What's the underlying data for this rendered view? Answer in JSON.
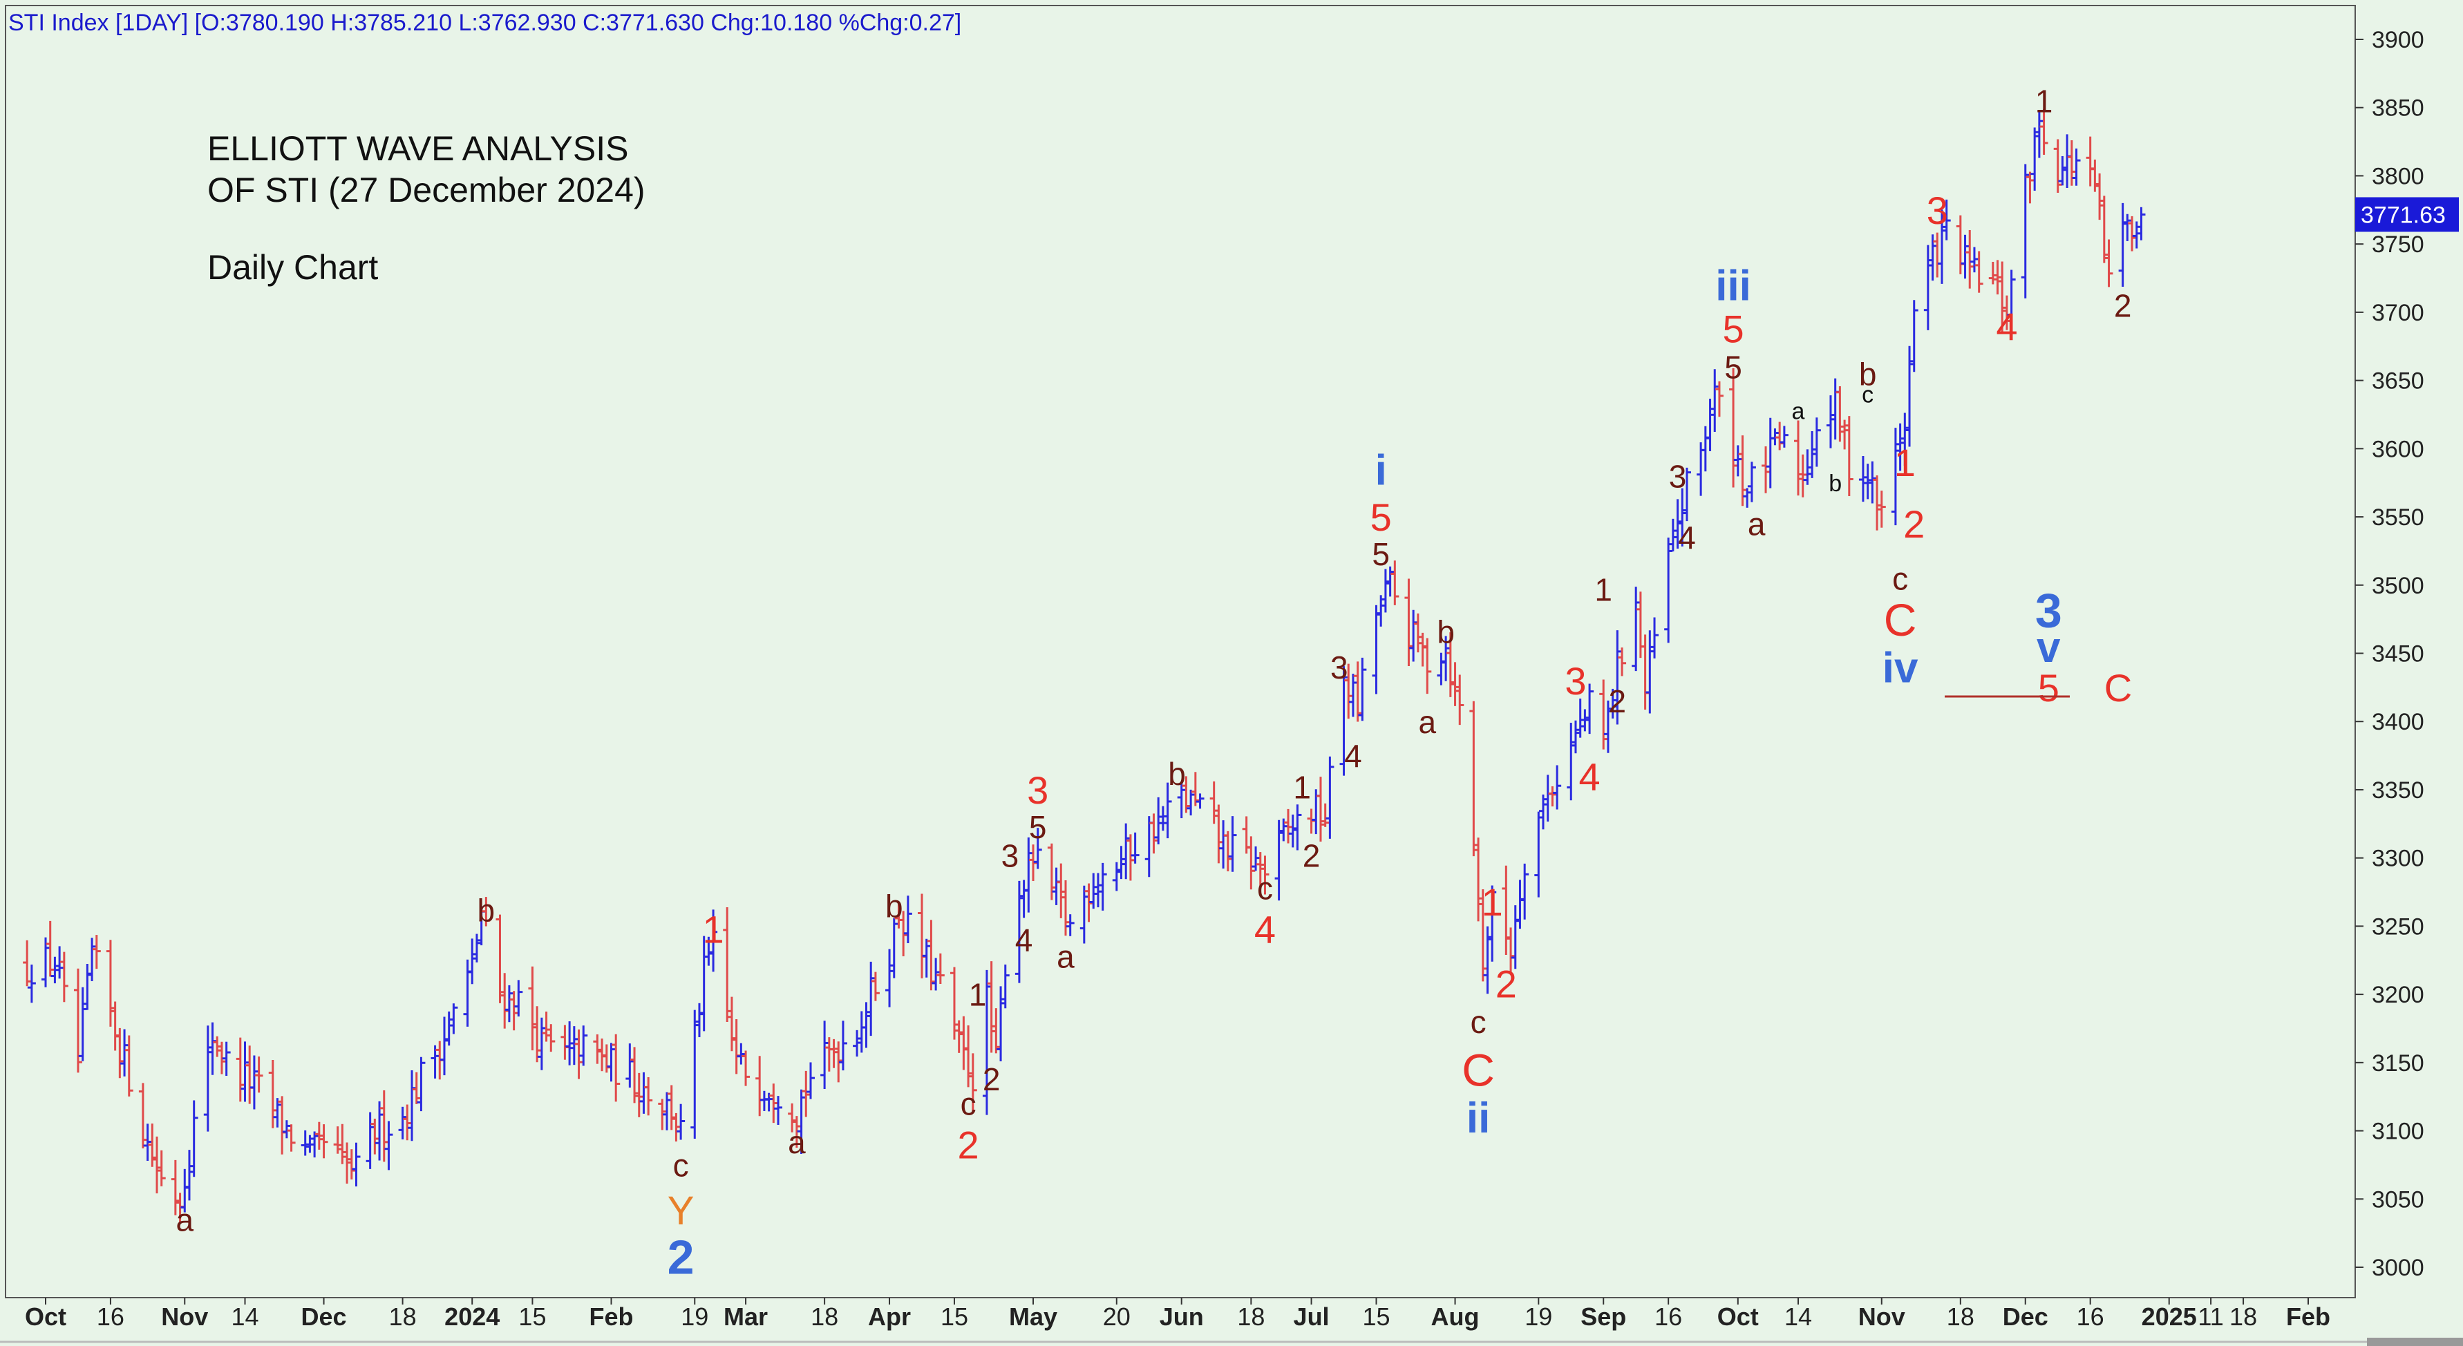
{
  "header": "STI Index [1DAY] [O:3780.190 H:3785.210 L:3762.930 C:3771.630 Chg:10.180 %Chg:0.27]",
  "title_lines": [
    "ELLIOTT WAVE ANALYSIS",
    "OF STI (27 December 2024)",
    "Daily Chart"
  ],
  "last_price": "3771.63",
  "colors": {
    "background": "#e8f4e8",
    "up_bar": "#2a2ae0",
    "down_bar": "#e04a4a",
    "label_dark": "#6b1a12",
    "label_red": "#e8322a",
    "label_blue": "#3a6ad8",
    "label_orange": "#e8802a",
    "price_box": "#1a1ad8"
  },
  "chart_data": {
    "type": "ohlc",
    "interval": "1DAY",
    "ylim": [
      2970,
      3920
    ],
    "y_ticks": [
      3000,
      3050,
      3100,
      3150,
      3200,
      3250,
      3300,
      3350,
      3400,
      3450,
      3500,
      3550,
      3600,
      3650,
      3700,
      3750,
      3800,
      3850,
      3900
    ],
    "x_ticks": [
      {
        "label": "Oct",
        "date": "2023-10-02",
        "major": true
      },
      {
        "label": "16",
        "date": "2023-10-16"
      },
      {
        "label": "Nov",
        "date": "2023-11-01",
        "major": true
      },
      {
        "label": "14",
        "date": "2023-11-14"
      },
      {
        "label": "Dec",
        "date": "2023-12-01",
        "major": true
      },
      {
        "label": "18",
        "date": "2023-12-18"
      },
      {
        "label": "2024",
        "date": "2024-01-02",
        "major": true
      },
      {
        "label": "15",
        "date": "2024-01-15"
      },
      {
        "label": "Feb",
        "date": "2024-02-01",
        "major": true
      },
      {
        "label": "19",
        "date": "2024-02-19"
      },
      {
        "label": "Mar",
        "date": "2024-03-01",
        "major": true
      },
      {
        "label": "18",
        "date": "2024-03-18"
      },
      {
        "label": "Apr",
        "date": "2024-04-01",
        "major": true
      },
      {
        "label": "15",
        "date": "2024-04-15"
      },
      {
        "label": "May",
        "date": "2024-05-02",
        "major": true
      },
      {
        "label": "20",
        "date": "2024-05-20"
      },
      {
        "label": "Jun",
        "date": "2024-06-03",
        "major": true
      },
      {
        "label": "18",
        "date": "2024-06-18"
      },
      {
        "label": "Jul",
        "date": "2024-07-01",
        "major": true
      },
      {
        "label": "15",
        "date": "2024-07-15"
      },
      {
        "label": "Aug",
        "date": "2024-08-01",
        "major": true
      },
      {
        "label": "19",
        "date": "2024-08-19"
      },
      {
        "label": "Sep",
        "date": "2024-09-02",
        "major": true
      },
      {
        "label": "16",
        "date": "2024-09-16"
      },
      {
        "label": "Oct",
        "date": "2024-10-01",
        "major": true
      },
      {
        "label": "14",
        "date": "2024-10-14"
      },
      {
        "label": "Nov",
        "date": "2024-11-01",
        "major": true
      },
      {
        "label": "18",
        "date": "2024-11-18"
      },
      {
        "label": "Dec",
        "date": "2024-12-02",
        "major": true
      },
      {
        "label": "16",
        "date": "2024-12-16"
      },
      {
        "label": "2025",
        "date": "2025-01-02",
        "major": true
      },
      {
        "label": "11",
        "date": "2025-01-11"
      },
      {
        "label": "18",
        "date": "2025-01-18"
      },
      {
        "label": "Feb",
        "date": "2025-02-01",
        "major": true
      }
    ],
    "price_path": [
      [
        "2023-09-28",
        3220
      ],
      [
        "2023-10-04",
        3225
      ],
      [
        "2023-10-09",
        3150
      ],
      [
        "2023-10-12",
        3230
      ],
      [
        "2023-10-16",
        3185
      ],
      [
        "2023-10-20",
        3140
      ],
      [
        "2023-10-24",
        3090
      ],
      [
        "2023-10-27",
        3065
      ],
      [
        "2023-10-31",
        3050
      ],
      [
        "2023-11-03",
        3105
      ],
      [
        "2023-11-07",
        3170
      ],
      [
        "2023-11-10",
        3150
      ],
      [
        "2023-11-14",
        3140
      ],
      [
        "2023-11-17",
        3130
      ],
      [
        "2023-11-22",
        3105
      ],
      [
        "2023-11-28",
        3080
      ],
      [
        "2023-12-01",
        3090
      ],
      [
        "2023-12-05",
        3075
      ],
      [
        "2023-12-08",
        3070
      ],
      [
        "2023-12-12",
        3100
      ],
      [
        "2023-12-18",
        3110
      ],
      [
        "2023-12-22",
        3140
      ],
      [
        "2023-12-27",
        3170
      ],
      [
        "2024-01-02",
        3220
      ],
      [
        "2024-01-04",
        3260
      ],
      [
        "2024-01-08",
        3200
      ],
      [
        "2024-01-12",
        3195
      ],
      [
        "2024-01-17",
        3165
      ],
      [
        "2024-01-22",
        3155
      ],
      [
        "2024-01-26",
        3160
      ],
      [
        "2024-01-31",
        3150
      ],
      [
        "2024-02-05",
        3140
      ],
      [
        "2024-02-09",
        3130
      ],
      [
        "2024-02-14",
        3115
      ],
      [
        "2024-02-16",
        3100
      ],
      [
        "2024-02-21",
        3215
      ],
      [
        "2024-02-23",
        3235
      ],
      [
        "2024-02-28",
        3150
      ],
      [
        "2024-03-04",
        3135
      ],
      [
        "2024-03-08",
        3130
      ],
      [
        "2024-03-12",
        3115
      ],
      [
        "2024-03-15",
        3140
      ],
      [
        "2024-03-20",
        3160
      ],
      [
        "2024-03-25",
        3175
      ],
      [
        "2024-03-28",
        3200
      ],
      [
        "2024-04-01",
        3230
      ],
      [
        "2024-04-03",
        3260
      ],
      [
        "2024-04-08",
        3230
      ],
      [
        "2024-04-12",
        3205
      ],
      [
        "2024-04-16",
        3160
      ],
      [
        "2024-04-19",
        3140
      ],
      [
        "2024-04-22",
        3195
      ],
      [
        "2024-04-24",
        3150
      ],
      [
        "2024-04-26",
        3225
      ],
      [
        "2024-04-29",
        3275
      ],
      [
        "2024-05-02",
        3300
      ],
      [
        "2024-05-07",
        3270
      ],
      [
        "2024-05-10",
        3250
      ],
      [
        "2024-05-15",
        3285
      ],
      [
        "2024-05-20",
        3295
      ],
      [
        "2024-05-24",
        3310
      ],
      [
        "2024-05-29",
        3325
      ],
      [
        "2024-06-03",
        3345
      ],
      [
        "2024-06-07",
        3335
      ],
      [
        "2024-06-12",
        3310
      ],
      [
        "2024-06-17",
        3300
      ],
      [
        "2024-06-21",
        3290
      ],
      [
        "2024-06-26",
        3320
      ],
      [
        "2024-07-01",
        3335
      ],
      [
        "2024-07-04",
        3330
      ],
      [
        "2024-07-08",
        3435
      ],
      [
        "2024-07-11",
        3410
      ],
      [
        "2024-07-15",
        3480
      ],
      [
        "2024-07-18",
        3500
      ],
      [
        "2024-07-22",
        3465
      ],
      [
        "2024-07-26",
        3445
      ],
      [
        "2024-07-30",
        3455
      ],
      [
        "2024-08-01",
        3420
      ],
      [
        "2024-08-03",
        3400
      ],
      [
        "2024-08-05",
        3310
      ],
      [
        "2024-08-07",
        3225
      ],
      [
        "2024-08-09",
        3265
      ],
      [
        "2024-08-13",
        3235
      ],
      [
        "2024-08-16",
        3300
      ],
      [
        "2024-08-20",
        3340
      ],
      [
        "2024-08-23",
        3360
      ],
      [
        "2024-08-27",
        3390
      ],
      [
        "2024-08-30",
        3410
      ],
      [
        "2024-09-02",
        3385
      ],
      [
        "2024-09-05",
        3440
      ],
      [
        "2024-09-09",
        3490
      ],
      [
        "2024-09-11",
        3420
      ],
      [
        "2024-09-16",
        3520
      ],
      [
        "2024-09-19",
        3560
      ],
      [
        "2024-09-23",
        3600
      ],
      [
        "2024-09-26",
        3640
      ],
      [
        "2024-09-30",
        3600
      ],
      [
        "2024-10-03",
        3570
      ],
      [
        "2024-10-07",
        3590
      ],
      [
        "2024-10-10",
        3605
      ],
      [
        "2024-10-15",
        3580
      ],
      [
        "2024-10-18",
        3620
      ],
      [
        "2024-10-22",
        3630
      ],
      [
        "2024-10-25",
        3590
      ],
      [
        "2024-10-29",
        3580
      ],
      [
        "2024-11-01",
        3550
      ],
      [
        "2024-11-04",
        3600
      ],
      [
        "2024-11-06",
        3620
      ],
      [
        "2024-11-08",
        3700
      ],
      [
        "2024-11-12",
        3740
      ],
      [
        "2024-11-15",
        3760
      ],
      [
        "2024-11-20",
        3730
      ],
      [
        "2024-11-25",
        3720
      ],
      [
        "2024-11-28",
        3700
      ],
      [
        "2024-12-02",
        3790
      ],
      [
        "2024-12-05",
        3840
      ],
      [
        "2024-12-09",
        3805
      ],
      [
        "2024-12-13",
        3810
      ],
      [
        "2024-12-17",
        3790
      ],
      [
        "2024-12-20",
        3720
      ],
      [
        "2024-12-23",
        3760
      ],
      [
        "2024-12-27",
        3771.63
      ]
    ],
    "annotations": [
      {
        "text": "a",
        "date": "2023-11-01",
        "price": 3035,
        "style": "dark"
      },
      {
        "text": "b",
        "date": "2024-01-05",
        "price": 3262,
        "style": "dark"
      },
      {
        "text": "c",
        "date": "2024-02-16",
        "price": 3075,
        "style": "dark"
      },
      {
        "text": "Y",
        "date": "2024-02-16",
        "price": 3042,
        "style": "orange"
      },
      {
        "text": "2",
        "date": "2024-02-16",
        "price": 3008,
        "style": "blue_big"
      },
      {
        "text": "1",
        "date": "2024-02-23",
        "price": 3248,
        "style": "red"
      },
      {
        "text": "a",
        "date": "2024-03-12",
        "price": 3092,
        "style": "dark"
      },
      {
        "text": "b",
        "date": "2024-04-02",
        "price": 3265,
        "style": "dark"
      },
      {
        "text": "c",
        "date": "2024-04-18",
        "price": 3120,
        "style": "dark"
      },
      {
        "text": "2",
        "date": "2024-04-18",
        "price": 3090,
        "style": "red"
      },
      {
        "text": "1",
        "date": "2024-04-20",
        "price": 3200,
        "style": "dark"
      },
      {
        "text": "2",
        "date": "2024-04-23",
        "price": 3138,
        "style": "dark"
      },
      {
        "text": "3",
        "date": "2024-04-27",
        "price": 3302,
        "style": "dark"
      },
      {
        "text": "4",
        "date": "2024-04-30",
        "price": 3240,
        "style": "dark"
      },
      {
        "text": "3",
        "date": "2024-05-03",
        "price": 3350,
        "style": "red"
      },
      {
        "text": "5",
        "date": "2024-05-03",
        "price": 3323,
        "style": "dark"
      },
      {
        "text": "a",
        "date": "2024-05-09",
        "price": 3228,
        "style": "dark"
      },
      {
        "text": "b",
        "date": "2024-06-02",
        "price": 3362,
        "style": "dark"
      },
      {
        "text": "c",
        "date": "2024-06-21",
        "price": 3278,
        "style": "dark"
      },
      {
        "text": "4",
        "date": "2024-06-21",
        "price": 3248,
        "style": "red"
      },
      {
        "text": "1",
        "date": "2024-06-29",
        "price": 3352,
        "style": "dark"
      },
      {
        "text": "2",
        "date": "2024-07-01",
        "price": 3302,
        "style": "dark"
      },
      {
        "text": "3",
        "date": "2024-07-07",
        "price": 3440,
        "style": "dark"
      },
      {
        "text": "4",
        "date": "2024-07-10",
        "price": 3375,
        "style": "dark"
      },
      {
        "text": "i",
        "date": "2024-07-16",
        "price": 3585,
        "style": "blue"
      },
      {
        "text": "5",
        "date": "2024-07-16",
        "price": 3550,
        "style": "red"
      },
      {
        "text": "5",
        "date": "2024-07-16",
        "price": 3523,
        "style": "dark"
      },
      {
        "text": "b",
        "date": "2024-07-30",
        "price": 3466,
        "style": "dark"
      },
      {
        "text": "a",
        "date": "2024-07-26",
        "price": 3400,
        "style": "dark"
      },
      {
        "text": "c",
        "date": "2024-08-06",
        "price": 3180,
        "style": "dark"
      },
      {
        "text": "C",
        "date": "2024-08-06",
        "price": 3145,
        "style": "red_big"
      },
      {
        "text": "ii",
        "date": "2024-08-06",
        "price": 3110,
        "style": "blue"
      },
      {
        "text": "1",
        "date": "2024-08-09",
        "price": 3268,
        "style": "red"
      },
      {
        "text": "2",
        "date": "2024-08-12",
        "price": 3208,
        "style": "red"
      },
      {
        "text": "3",
        "date": "2024-08-27",
        "price": 3430,
        "style": "red"
      },
      {
        "text": "4",
        "date": "2024-08-30",
        "price": 3360,
        "style": "red"
      },
      {
        "text": "1",
        "date": "2024-09-02",
        "price": 3497,
        "style": "dark"
      },
      {
        "text": "2",
        "date": "2024-09-05",
        "price": 3415,
        "style": "dark"
      },
      {
        "text": "3",
        "date": "2024-09-18",
        "price": 3580,
        "style": "dark"
      },
      {
        "text": "4",
        "date": "2024-09-20",
        "price": 3535,
        "style": "dark"
      },
      {
        "text": "iii",
        "date": "2024-09-30",
        "price": 3720,
        "style": "blue"
      },
      {
        "text": "5",
        "date": "2024-09-30",
        "price": 3688,
        "style": "red"
      },
      {
        "text": "5",
        "date": "2024-09-30",
        "price": 3660,
        "style": "dark"
      },
      {
        "text": "a",
        "date": "2024-10-05",
        "price": 3545,
        "style": "dark"
      },
      {
        "text": "a",
        "date": "2024-10-14",
        "price": 3628,
        "style": "dark_small"
      },
      {
        "text": "b",
        "date": "2024-10-22",
        "price": 3575,
        "style": "dark_small"
      },
      {
        "text": "b",
        "date": "2024-10-29",
        "price": 3655,
        "style": "dark"
      },
      {
        "text": "c",
        "date": "2024-10-29",
        "price": 3640,
        "style": "dark_small"
      },
      {
        "text": "1",
        "date": "2024-11-06",
        "price": 3590,
        "style": "red"
      },
      {
        "text": "2",
        "date": "2024-11-08",
        "price": 3545,
        "style": "red"
      },
      {
        "text": "c",
        "date": "2024-11-05",
        "price": 3505,
        "style": "dark"
      },
      {
        "text": "C",
        "date": "2024-11-05",
        "price": 3475,
        "style": "red_big"
      },
      {
        "text": "iv",
        "date": "2024-11-05",
        "price": 3440,
        "style": "blue"
      },
      {
        "text": "3",
        "date": "2024-11-13",
        "price": 3775,
        "style": "red"
      },
      {
        "text": "4",
        "date": "2024-11-28",
        "price": 3690,
        "style": "red"
      },
      {
        "text": "1",
        "date": "2024-12-06",
        "price": 3855,
        "style": "dark"
      },
      {
        "text": "2",
        "date": "2024-12-23",
        "price": 3705,
        "style": "dark"
      },
      {
        "text": "3",
        "date": "2024-12-07",
        "price": 3482,
        "style": "blue_big"
      },
      {
        "text": "v",
        "date": "2024-12-07",
        "price": 3455,
        "style": "blue"
      },
      {
        "text": "5",
        "date": "2024-12-07",
        "price": 3425,
        "style": "red"
      },
      {
        "text": "C",
        "date": "2024-12-22",
        "price": 3425,
        "style": "red"
      }
    ]
  }
}
